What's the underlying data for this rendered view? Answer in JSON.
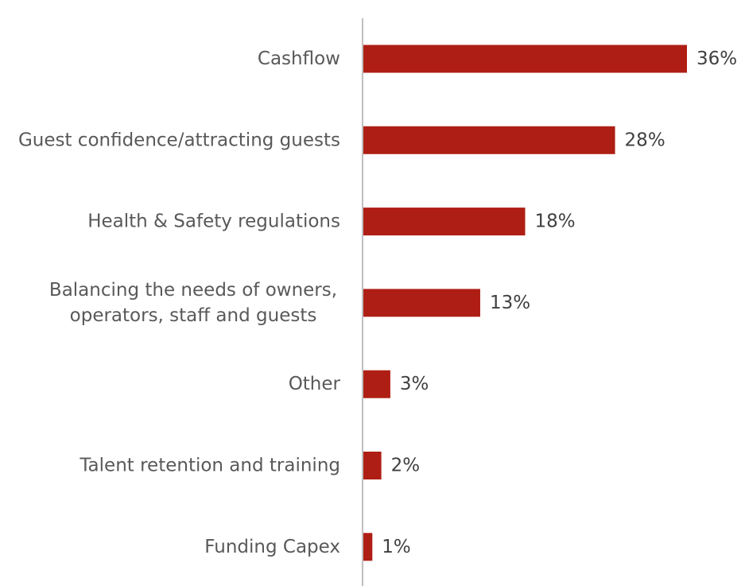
{
  "chart_data": {
    "type": "bar",
    "orientation": "horizontal",
    "categories": [
      [
        "Cashflow"
      ],
      [
        "Guest confidence/attracting guests"
      ],
      [
        "Health & Safety regulations"
      ],
      [
        "Balancing the needs of owners,",
        "operators, staff and guests"
      ],
      [
        "Other"
      ],
      [
        "Talent retention and training"
      ],
      [
        "Funding Capex"
      ]
    ],
    "values": [
      36,
      28,
      18,
      13,
      3,
      2,
      1
    ],
    "value_labels": [
      "36%",
      "28%",
      "18%",
      "13%",
      "3%",
      "2%",
      "1%"
    ],
    "unit": "%",
    "title": "",
    "xlabel": "",
    "ylabel": "",
    "xlim": [
      0,
      36
    ],
    "grid": false,
    "legend": "none",
    "colors": {
      "bar": "#AF1E14",
      "axis": "#BFBFBF",
      "category_text": "#595959",
      "value_text": "#404040"
    }
  }
}
